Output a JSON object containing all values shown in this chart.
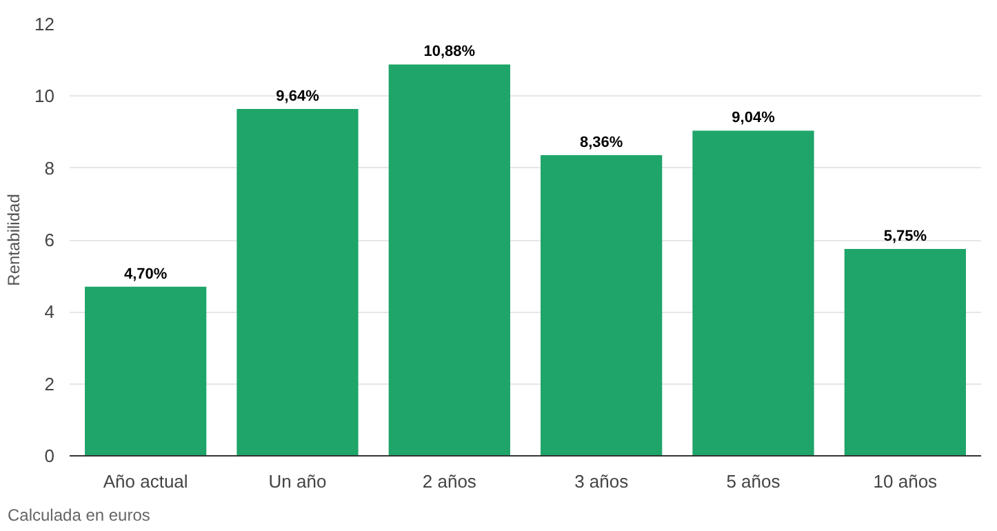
{
  "chart_data": {
    "type": "bar",
    "ylabel": "Rentabilidad",
    "categories": [
      "Año actual",
      "Un año",
      "2 años",
      "3 años",
      "5 años",
      "10 años"
    ],
    "values": [
      4.7,
      9.64,
      10.88,
      8.36,
      9.04,
      5.75
    ],
    "value_labels": [
      "4,70%",
      "9,64%",
      "10,88%",
      "8,36%",
      "9,04%",
      "5,75%"
    ],
    "color": "#1fa56a",
    "ylim": [
      0,
      12
    ],
    "yticks": [
      0,
      2,
      4,
      6,
      8,
      10,
      12
    ],
    "grid": "y",
    "annotations": [
      "Calculada en euros"
    ]
  }
}
